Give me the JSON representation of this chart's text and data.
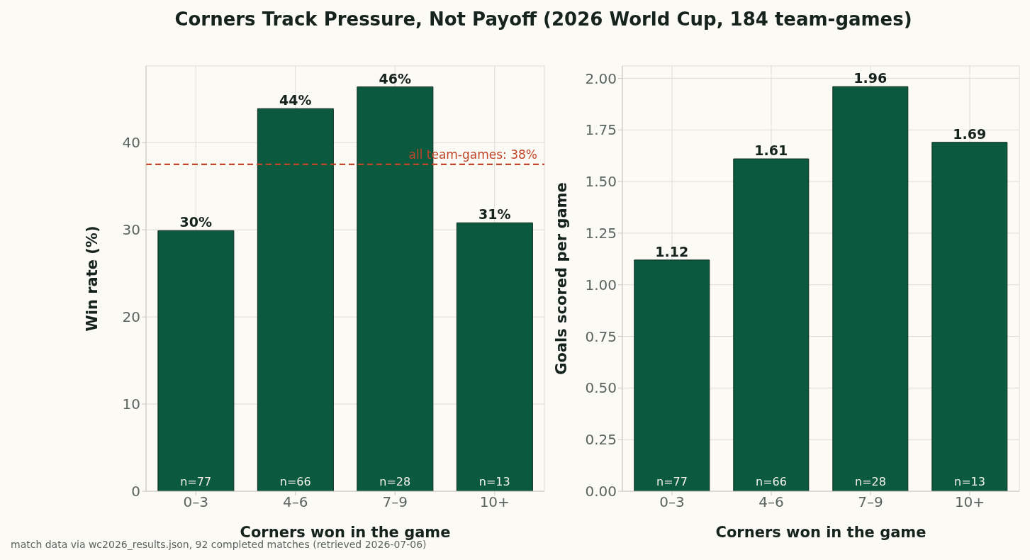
{
  "chart_data": [
    {
      "type": "bar",
      "title": "Corners Track Pressure, Not Payoff (2026 World Cup, 184 team-games)",
      "xlabel": "Corners won in the game",
      "ylabel": "Win rate (%)",
      "categories": [
        "0–3",
        "4–6",
        "7–9",
        "10+"
      ],
      "series": [
        {
          "color": "#0b5a3f",
          "values": [
            29.9,
            43.9,
            46.4,
            30.8
          ],
          "value_labels": [
            "30%",
            "44%",
            "46%",
            "31%"
          ]
        }
      ],
      "ylim": [
        0,
        48.8
      ],
      "yticks": [
        0,
        10,
        20,
        30,
        40
      ],
      "grid": true,
      "ref_lines": [
        {
          "axis": "y",
          "value": 37.5,
          "label": "all team-games: 38%",
          "color": "#c0452a",
          "line_style": "dashed"
        }
      ],
      "annotations": [
        {
          "text": "n=77",
          "x": "0–3",
          "y": 0
        },
        {
          "text": "n=66",
          "x": "4–6",
          "y": 0
        },
        {
          "text": "n=28",
          "x": "7–9",
          "y": 0
        },
        {
          "text": "n=13",
          "x": "10+",
          "y": 0
        },
        "match data via wc2026_results.json, 92 completed matches (retrieved 2026-07-06)"
      ]
    },
    {
      "type": "bar",
      "xlabel": "Corners won in the game",
      "ylabel": "Goals scored per game",
      "categories": [
        "0–3",
        "4–6",
        "7–9",
        "10+"
      ],
      "series": [
        {
          "color": "#0b5a3f",
          "values": [
            1.12,
            1.61,
            1.96,
            1.69
          ]
        }
      ],
      "ylim": [
        0,
        2.06
      ],
      "yticks": [
        {
          "value": 0,
          "label": "0.00"
        },
        {
          "value": 0.25,
          "label": "0.25"
        },
        {
          "value": 0.5,
          "label": "0.50"
        },
        {
          "value": 0.75,
          "label": "0.75"
        },
        {
          "value": 1,
          "label": "1.00"
        },
        {
          "value": 1.25,
          "label": "1.25"
        },
        {
          "value": 1.5,
          "label": "1.50"
        },
        {
          "value": 1.75,
          "label": "1.75"
        },
        {
          "value": 2,
          "label": "2.00"
        }
      ],
      "grid": true,
      "data_labels": true,
      "annotations": [
        {
          "text": "n=77",
          "x": "0–3",
          "y": 0
        },
        {
          "text": "n=66",
          "x": "4–6",
          "y": 0
        },
        {
          "text": "n=28",
          "x": "7–9",
          "y": 0
        },
        {
          "text": "n=13",
          "x": "10+",
          "y": 0
        }
      ]
    }
  ]
}
